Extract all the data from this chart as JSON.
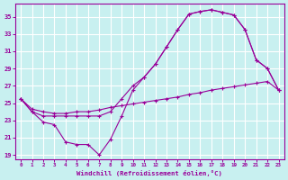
{
  "xlabel": "Windchill (Refroidissement éolien,°C)",
  "bg_color": "#c8f0f0",
  "line_color": "#990099",
  "grid_color": "#ffffff",
  "x_ticks": [
    0,
    1,
    2,
    3,
    4,
    5,
    6,
    7,
    8,
    9,
    10,
    11,
    12,
    13,
    14,
    15,
    16,
    17,
    18,
    19,
    20,
    21,
    22,
    23
  ],
  "y_ticks": [
    19,
    21,
    23,
    25,
    27,
    29,
    31,
    33,
    35
  ],
  "ylim": [
    18.5,
    36.5
  ],
  "xlim": [
    -0.5,
    23.5
  ],
  "line1_x": [
    0,
    1,
    2,
    3,
    4,
    5,
    6,
    7,
    8,
    9,
    10,
    11,
    12,
    13,
    14,
    15,
    16,
    17,
    18,
    19,
    20,
    21,
    22,
    23
  ],
  "line1_y": [
    25.5,
    24.0,
    22.8,
    22.5,
    20.5,
    20.2,
    20.2,
    19.0,
    20.8,
    23.5,
    26.5,
    28.0,
    29.5,
    31.5,
    33.5,
    35.3,
    35.6,
    35.8,
    35.5,
    35.2,
    33.5,
    30.0,
    29.0,
    26.5
  ],
  "line2_x": [
    0,
    1,
    2,
    3,
    4,
    5,
    6,
    7,
    8,
    9,
    10,
    11,
    12,
    13,
    14,
    15,
    16,
    17,
    18,
    19,
    20,
    21,
    22,
    23
  ],
  "line2_y": [
    25.5,
    24.0,
    23.5,
    23.5,
    23.5,
    23.5,
    23.5,
    23.5,
    24.0,
    25.5,
    27.0,
    28.0,
    29.5,
    31.5,
    33.5,
    35.3,
    35.6,
    35.8,
    35.5,
    35.2,
    33.5,
    30.0,
    29.0,
    26.5
  ],
  "line3_x": [
    0,
    1,
    2,
    3,
    4,
    5,
    6,
    7,
    8,
    9,
    10,
    11,
    12,
    13,
    14,
    15,
    16,
    17,
    18,
    19,
    20,
    21,
    22,
    23
  ],
  "line3_y": [
    25.5,
    24.3,
    24.0,
    23.8,
    23.8,
    24.0,
    24.0,
    24.2,
    24.5,
    24.7,
    24.9,
    25.1,
    25.3,
    25.5,
    25.7,
    26.0,
    26.2,
    26.5,
    26.7,
    26.9,
    27.1,
    27.3,
    27.5,
    26.5
  ]
}
